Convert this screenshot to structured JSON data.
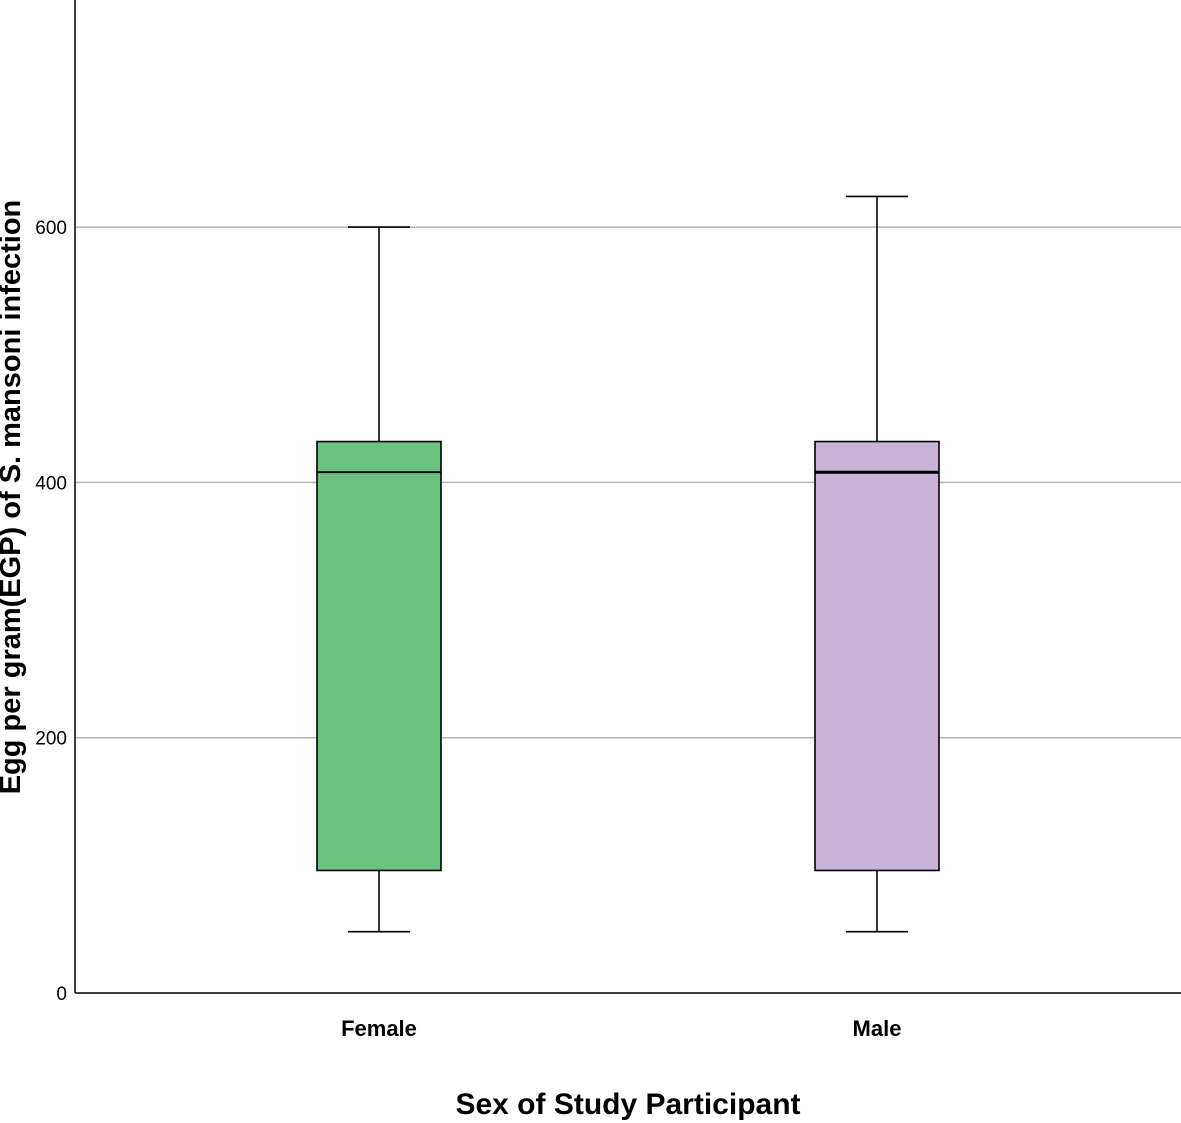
{
  "chart_data": {
    "type": "boxplot",
    "xlabel": "Sex of Study Participant",
    "ylabel": "Egg per gram(EGP) of S. mansoni infection",
    "ylim": [
      0,
      780
    ],
    "yticks": [
      0,
      200,
      400,
      600
    ],
    "grid": "horizontal",
    "categories": [
      "Female",
      "Male"
    ],
    "boxes": [
      {
        "category": "Female",
        "min": 48,
        "q1": 96,
        "median": 408,
        "q3": 432,
        "max": 600,
        "color": "#6cc27f"
      },
      {
        "category": "Male",
        "min": 48,
        "q1": 96,
        "median": 408,
        "q3": 432,
        "max": 624,
        "color": "#c9b3d6"
      }
    ]
  }
}
